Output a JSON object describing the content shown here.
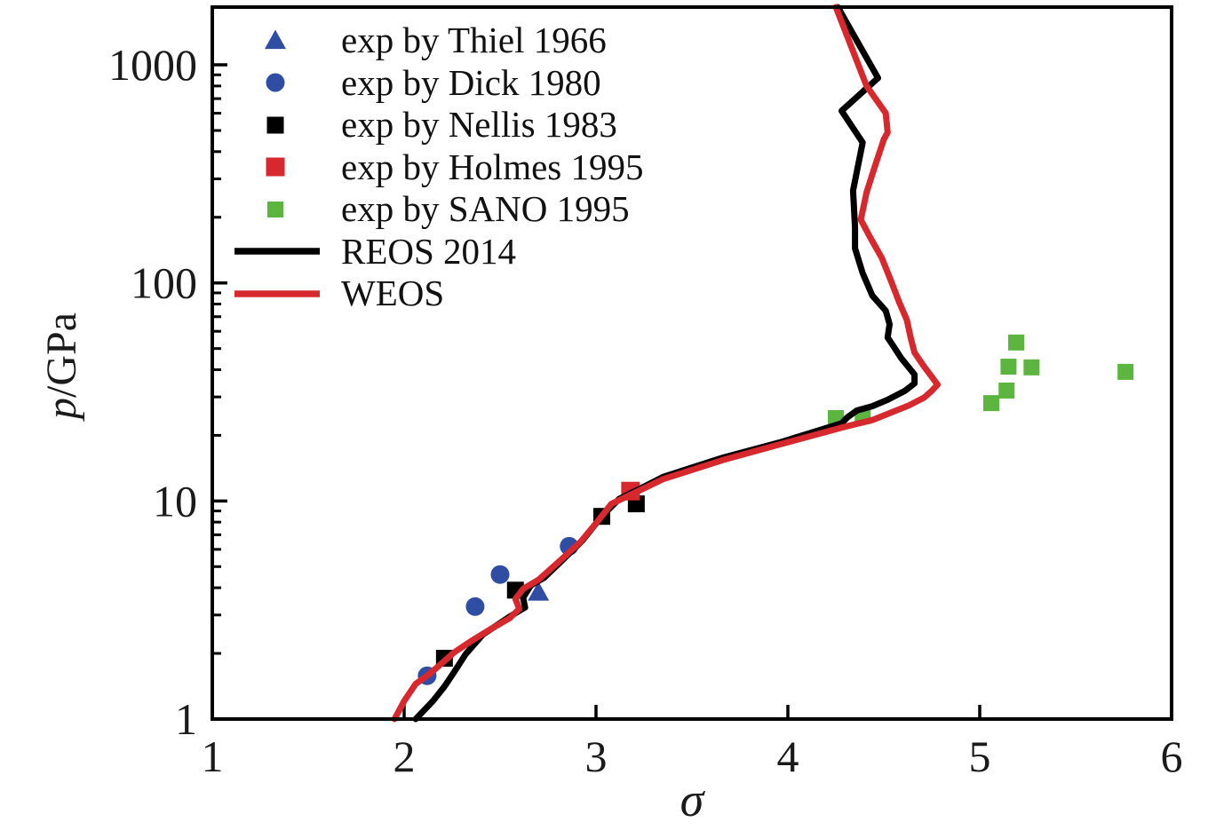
{
  "figure": {
    "background": "#ffffff",
    "frame_color": "#000000",
    "text_color": "#1a1a1a"
  },
  "chart_data": {
    "type": "line",
    "title": "",
    "xlabel": "σ",
    "ylabel": "p/GPa",
    "ylabel_parts": {
      "italic": "p",
      "rest": "/GPa"
    },
    "x_axis": {
      "scale": "linear",
      "min": 1,
      "max": 6,
      "ticks": [
        1,
        2,
        3,
        4,
        5,
        6
      ]
    },
    "y_axis": {
      "scale": "log",
      "min": 1,
      "max": 1840,
      "ticks": [
        1,
        10,
        100,
        1000
      ],
      "minor_ticks_per_decade": [
        2,
        3,
        4,
        5,
        6,
        7,
        8,
        9
      ]
    },
    "grid": false,
    "legend_position": "top-left",
    "series": [
      {
        "name": "exp by Thiel 1966",
        "type": "scatter",
        "marker": "triangle",
        "color": "#2e4da3",
        "size": 24,
        "points": [
          [
            2.7,
            3.8
          ]
        ]
      },
      {
        "name": "exp by Dick 1980",
        "type": "scatter",
        "marker": "circle",
        "color": "#2e4da3",
        "size": 21,
        "points": [
          [
            2.12,
            1.58
          ],
          [
            2.37,
            3.28
          ],
          [
            2.5,
            4.6
          ],
          [
            2.86,
            6.2
          ]
        ]
      },
      {
        "name": "exp by Nellis 1983",
        "type": "scatter",
        "marker": "square",
        "color": "#000000",
        "size": 19,
        "points": [
          [
            2.21,
            1.9
          ],
          [
            2.58,
            3.9
          ],
          [
            3.03,
            8.5
          ],
          [
            3.21,
            9.7
          ]
        ]
      },
      {
        "name": "exp by Holmes 1995",
        "type": "scatter",
        "marker": "square",
        "color": "#d7282e",
        "size": 21,
        "points": [
          [
            3.18,
            11.1
          ]
        ]
      },
      {
        "name": "exp by SANO 1995",
        "type": "scatter",
        "marker": "square",
        "color": "#5bb53e",
        "size": 18,
        "points": [
          [
            4.25,
            24.0
          ],
          [
            4.39,
            24.5
          ],
          [
            5.06,
            28.1
          ],
          [
            5.14,
            32.1
          ],
          [
            5.15,
            41.3
          ],
          [
            5.27,
            41.0
          ],
          [
            5.19,
            53.3
          ],
          [
            5.76,
            39.1
          ]
        ]
      },
      {
        "name": "REOS 2014",
        "type": "line",
        "color": "#000000",
        "width": 7,
        "points": [
          [
            2.06,
            1.0
          ],
          [
            2.15,
            1.21
          ],
          [
            2.21,
            1.41
          ],
          [
            2.26,
            1.64
          ],
          [
            2.32,
            1.98
          ],
          [
            2.41,
            2.44
          ],
          [
            2.55,
            2.95
          ],
          [
            2.63,
            3.25
          ],
          [
            2.62,
            3.6
          ],
          [
            2.66,
            4.1
          ],
          [
            2.73,
            4.45
          ],
          [
            2.82,
            5.3
          ],
          [
            2.93,
            6.6
          ],
          [
            3.03,
            8.5
          ],
          [
            3.12,
            10.2
          ],
          [
            3.24,
            11.5
          ],
          [
            3.35,
            12.9
          ],
          [
            3.66,
            15.8
          ],
          [
            3.97,
            18.7
          ],
          [
            4.28,
            22.7
          ],
          [
            4.31,
            24.2
          ],
          [
            4.36,
            26.0
          ],
          [
            4.44,
            27.2
          ],
          [
            4.52,
            29.1
          ],
          [
            4.61,
            32.0
          ],
          [
            4.66,
            34.6
          ],
          [
            4.66,
            38.0
          ],
          [
            4.59,
            45.3
          ],
          [
            4.55,
            51.3
          ],
          [
            4.52,
            56.2
          ],
          [
            4.53,
            64.7
          ],
          [
            4.51,
            74.5
          ],
          [
            4.44,
            87.5
          ],
          [
            4.39,
            111
          ],
          [
            4.35,
            144
          ],
          [
            4.35,
            180
          ],
          [
            4.34,
            265
          ],
          [
            4.39,
            440
          ],
          [
            4.28,
            615
          ],
          [
            4.47,
            870
          ],
          [
            4.26,
            1840
          ]
        ]
      },
      {
        "name": "WEOS",
        "type": "line",
        "color": "#d7282e",
        "width": 7,
        "points": [
          [
            1.95,
            1.0
          ],
          [
            2.0,
            1.21
          ],
          [
            2.06,
            1.45
          ],
          [
            2.12,
            1.58
          ],
          [
            2.18,
            1.75
          ],
          [
            2.26,
            2.02
          ],
          [
            2.35,
            2.28
          ],
          [
            2.44,
            2.55
          ],
          [
            2.55,
            2.9
          ],
          [
            2.6,
            3.2
          ],
          [
            2.58,
            3.55
          ],
          [
            2.62,
            3.95
          ],
          [
            2.7,
            4.35
          ],
          [
            2.82,
            5.4
          ],
          [
            2.92,
            6.5
          ],
          [
            3.01,
            8.1
          ],
          [
            3.08,
            9.7
          ],
          [
            3.22,
            11.1
          ],
          [
            3.35,
            12.6
          ],
          [
            3.66,
            15.4
          ],
          [
            3.97,
            18.3
          ],
          [
            4.28,
            21.7
          ],
          [
            4.44,
            23.5
          ],
          [
            4.57,
            26.1
          ],
          [
            4.63,
            27.4
          ],
          [
            4.71,
            29.8
          ],
          [
            4.75,
            32.0
          ],
          [
            4.78,
            34.2
          ],
          [
            4.76,
            36.1
          ],
          [
            4.71,
            41.3
          ],
          [
            4.66,
            47.9
          ],
          [
            4.64,
            56.2
          ],
          [
            4.62,
            67.7
          ],
          [
            4.58,
            81.6
          ],
          [
            4.54,
            101
          ],
          [
            4.49,
            130
          ],
          [
            4.43,
            161
          ],
          [
            4.38,
            195
          ],
          [
            4.41,
            260
          ],
          [
            4.45,
            335
          ],
          [
            4.5,
            455
          ],
          [
            4.52,
            490
          ],
          [
            4.51,
            600
          ],
          [
            4.41,
            800
          ],
          [
            4.32,
            1280
          ],
          [
            4.25,
            1840
          ]
        ]
      }
    ]
  }
}
